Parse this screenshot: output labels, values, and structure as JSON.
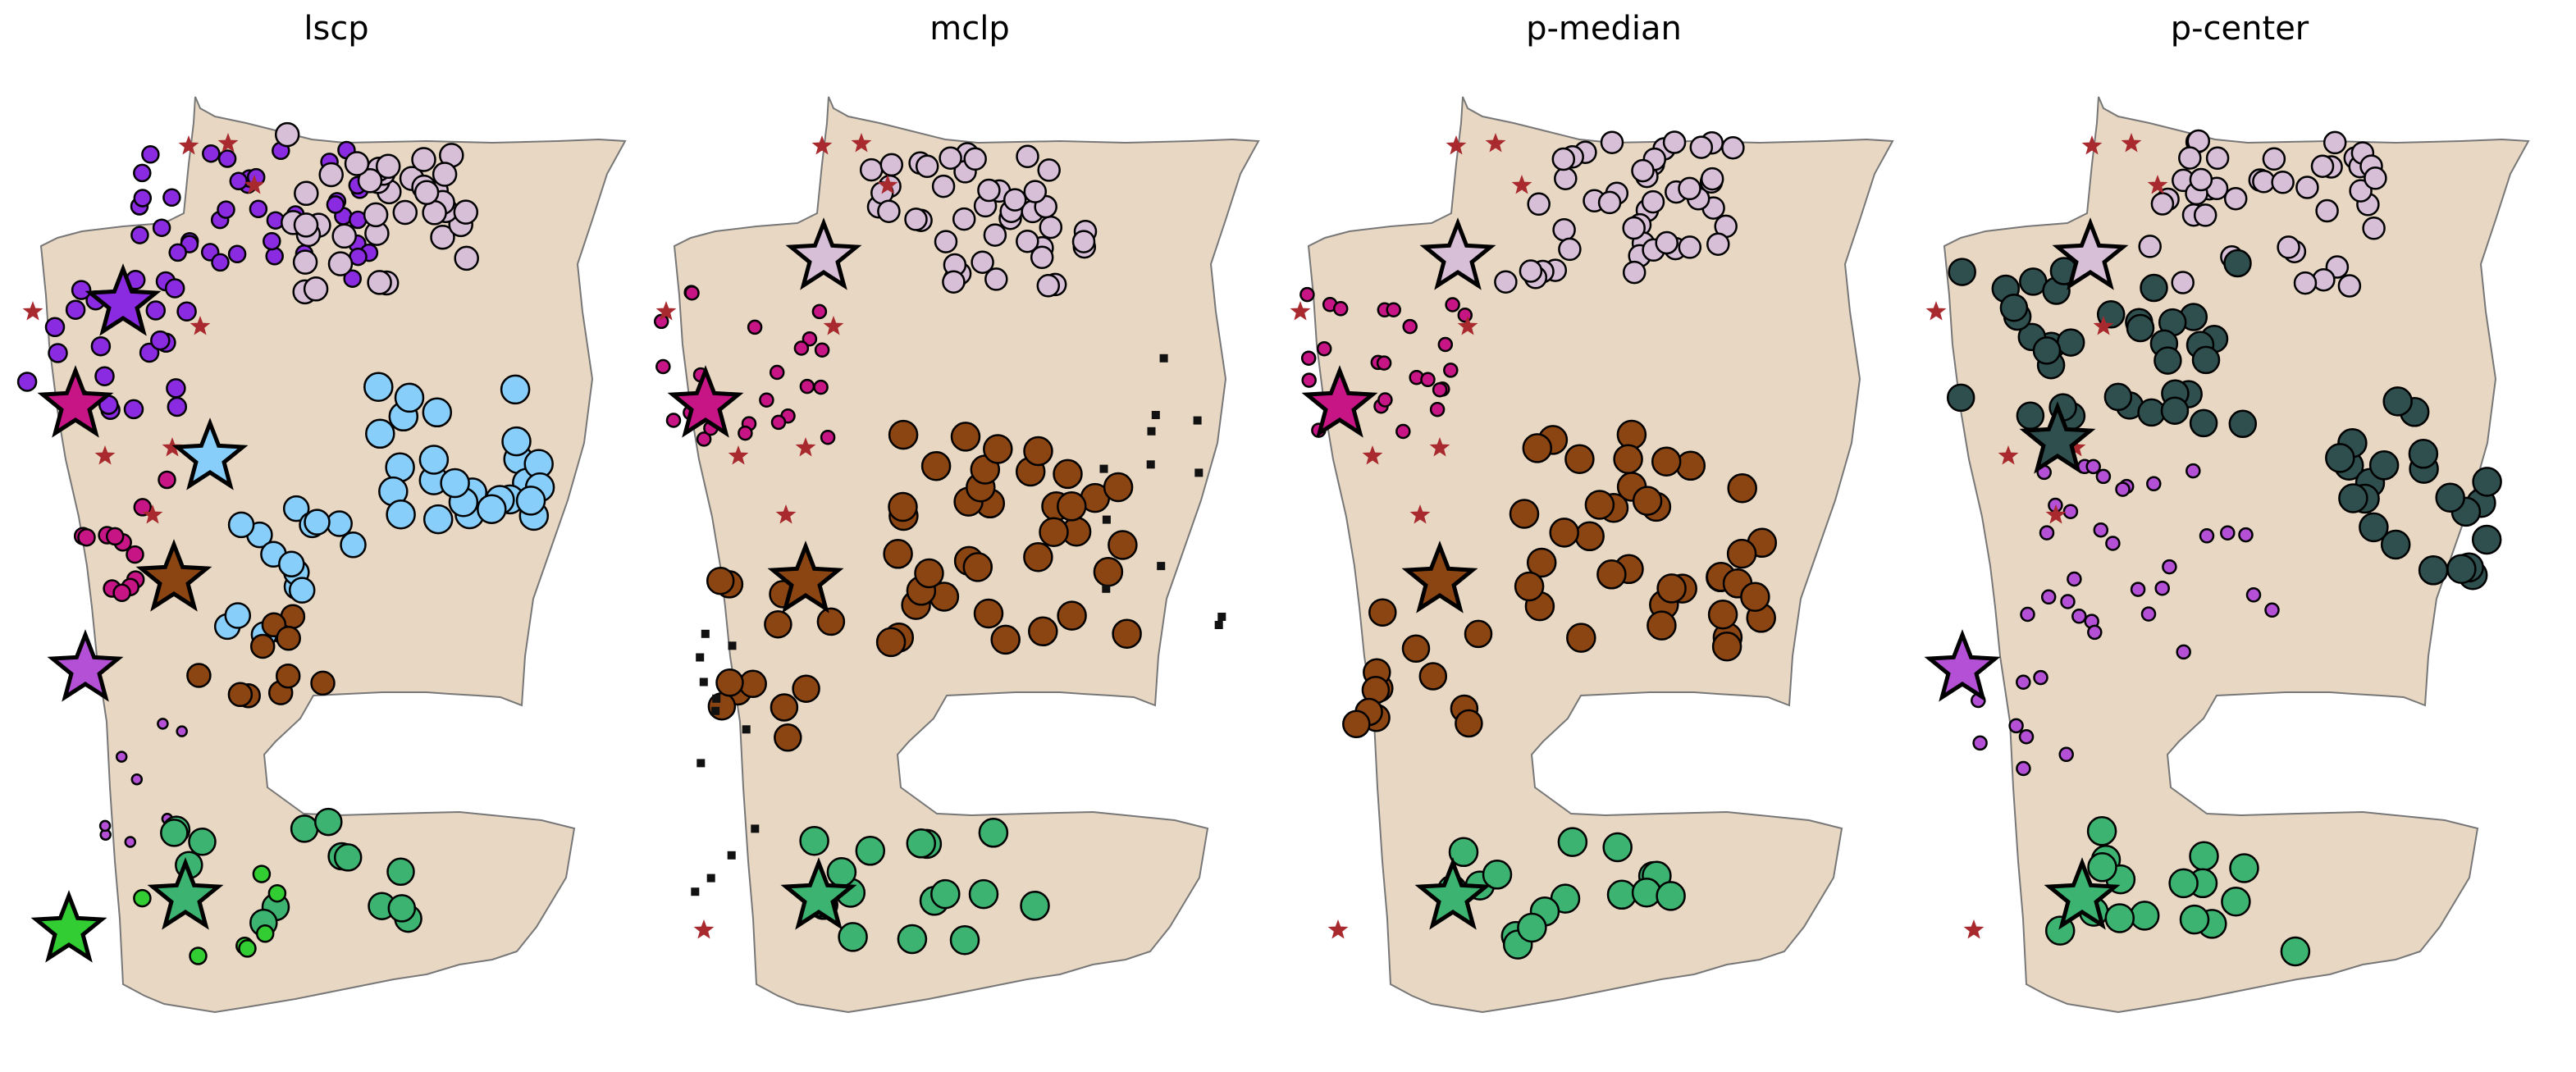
{
  "colors": {
    "land": "#e8d8c3",
    "land_edge": "#777777",
    "marker_edge": "#000000",
    "candidate": "#a8292e",
    "unassigned": "#111111",
    "purple": "#8a2be2",
    "magenta": "#c71585",
    "lightblue": "#87cefa",
    "brown": "#8b4513",
    "orchid": "#b450d6",
    "green_lime": "#32cd32",
    "green_med": "#3cb371",
    "thistle": "#d8bfd8",
    "darkslate": "#2f4f4f"
  },
  "chart_data": [
    {
      "type": "scatter",
      "title": "lscp",
      "facility_colors": [
        "purple",
        "magenta",
        "lightblue",
        "brown",
        "orchid",
        "green_lime",
        "green_med",
        "thistle"
      ],
      "notes": "8 selected facilities; demand points drawn with concentric rings when covered by multiple facilities"
    },
    {
      "type": "scatter",
      "title": "mclp",
      "facility_colors": [
        "magenta",
        "thistle",
        "brown",
        "green_med"
      ],
      "notes": "4 selected facilities; uncovered demand points shown as small black squares"
    },
    {
      "type": "scatter",
      "title": "p-median",
      "facility_colors": [
        "magenta",
        "thistle",
        "brown",
        "green_med"
      ],
      "notes": "4 selected facilities; every demand point allocated"
    },
    {
      "type": "scatter",
      "title": "p-center",
      "facility_colors": [
        "orchid",
        "thistle",
        "darkslate",
        "green_med"
      ],
      "notes": "4 selected facilities; every demand point allocated"
    }
  ]
}
